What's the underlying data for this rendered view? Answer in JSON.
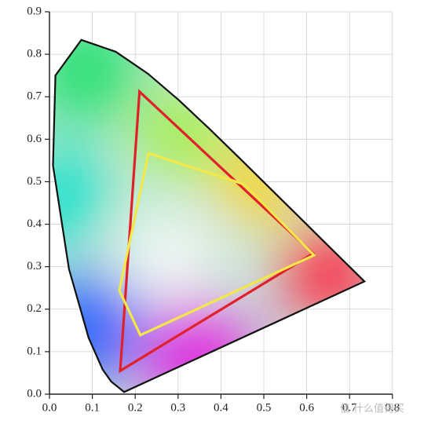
{
  "chart_data": {
    "type": "line",
    "xlim": [
      0,
      0.8
    ],
    "ylim": [
      0,
      0.9
    ],
    "xticks": [
      {
        "value": 0,
        "label": "0.0"
      },
      0.1,
      0.2,
      0.3,
      0.4,
      0.5,
      0.6,
      0.7,
      0.8
    ],
    "yticks": [
      {
        "value": 0,
        "label": "0.0"
      },
      0.1,
      0.2,
      0.3,
      0.4,
      0.5,
      0.6,
      0.7,
      0.8,
      0.9
    ],
    "grid": true,
    "watermark": "值 什么值得买",
    "series": [
      {
        "color": "#111111",
        "closed": true,
        "x": [
          0.1741,
          0.144,
          0.1241,
          0.0913,
          0.0454,
          0.0082,
          0.0139,
          0.0743,
          0.1547,
          0.2296,
          0.3016,
          0.3731,
          0.4441,
          0.5125,
          0.5752,
          0.627,
          0.6915,
          0.7347
        ],
        "y": [
          0.005,
          0.0297,
          0.0578,
          0.1327,
          0.295,
          0.5384,
          0.7502,
          0.8338,
          0.8059,
          0.7543,
          0.6923,
          0.6245,
          0.5547,
          0.4866,
          0.4242,
          0.3725,
          0.3083,
          0.2653
        ]
      },
      {
        "color": "#e0202a",
        "closed": true,
        "x": [
          0.21,
          0.615,
          0.165
        ],
        "y": [
          0.712,
          0.331,
          0.055
        ]
      },
      {
        "color": "#f2e84a",
        "closed": true,
        "x": [
          0.231,
          0.454,
          0.617,
          0.212,
          0.163
        ],
        "y": [
          0.567,
          0.494,
          0.327,
          0.139,
          0.244
        ]
      }
    ]
  }
}
